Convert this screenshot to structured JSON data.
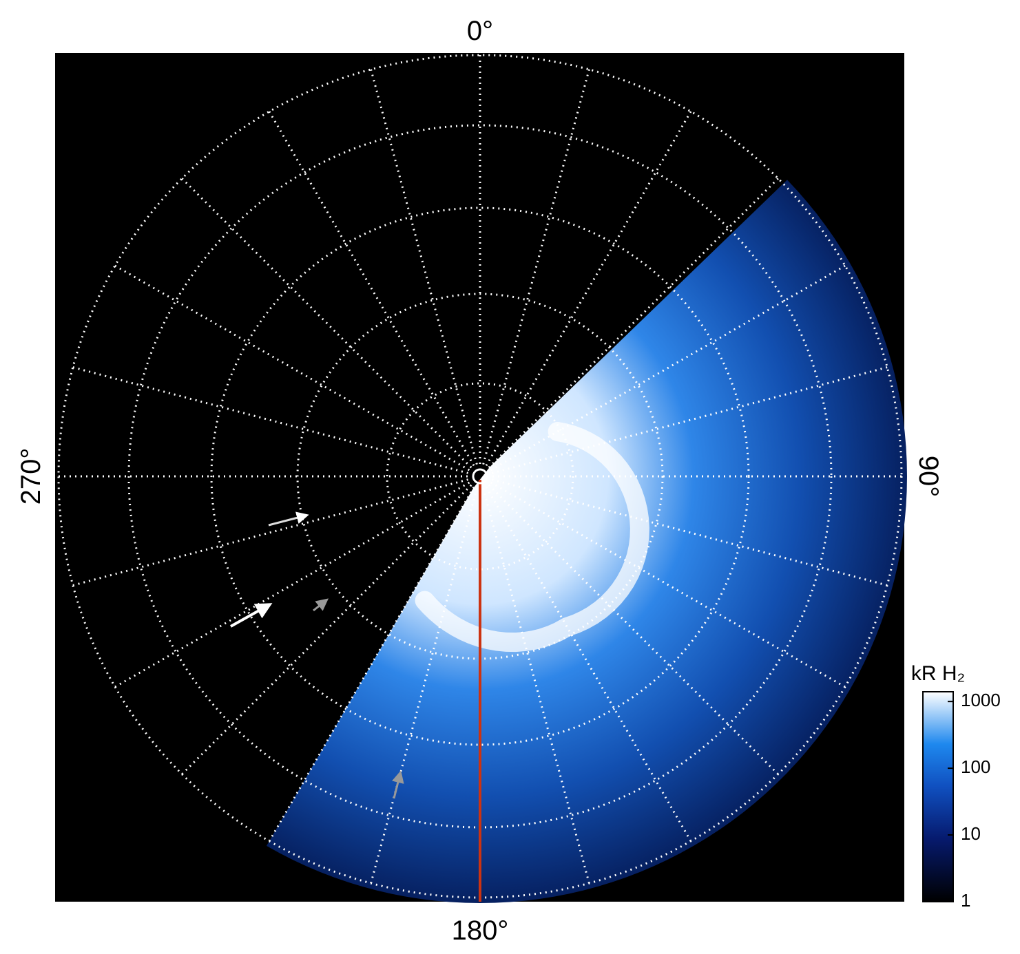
{
  "labels": {
    "top": "0°",
    "right": "90°",
    "bottom": "180°",
    "left": "270°"
  },
  "colorbar": {
    "label": "kR H₂",
    "scale": "log",
    "lim": [
      1,
      1400
    ],
    "ticks": [
      1,
      10,
      100,
      1000
    ]
  }
}
